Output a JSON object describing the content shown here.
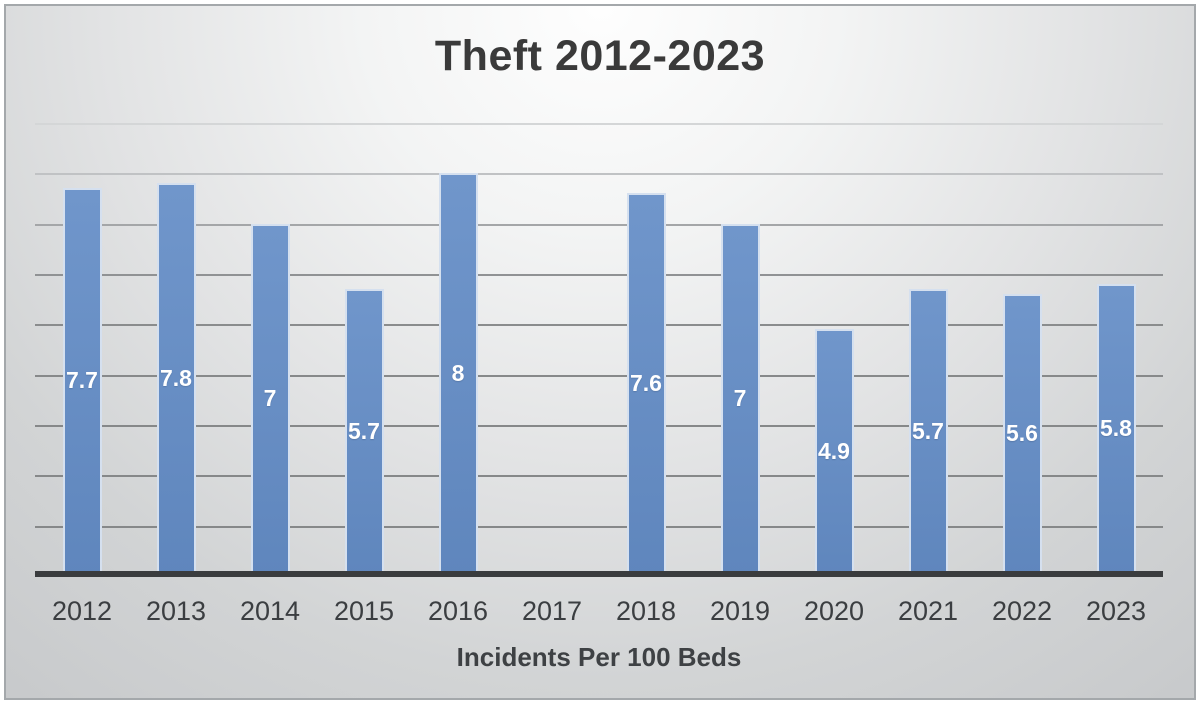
{
  "chart_data": {
    "type": "bar",
    "title": "Theft 2012-2023",
    "xlabel": "Incidents Per 100 Beds",
    "ylabel": "",
    "categories": [
      "2012",
      "2013",
      "2014",
      "2015",
      "2016",
      "2017",
      "2018",
      "2019",
      "2020",
      "2021",
      "2022",
      "2023"
    ],
    "values": [
      7.7,
      7.8,
      7,
      5.7,
      8,
      null,
      7.6,
      7,
      4.9,
      5.7,
      5.6,
      5.8
    ],
    "bar_labels": [
      "7.7",
      "7.8",
      "7",
      "5.7",
      "8",
      "",
      "7.6",
      "7",
      "4.9",
      "5.7",
      "5.6",
      "5.8"
    ],
    "ylim": [
      0,
      9
    ],
    "gridline_step": 1,
    "grid": true,
    "legend": false,
    "colors": {
      "bar_fill_top": "#7096CB",
      "bar_fill_bottom": "#5F86BD",
      "bar_border": "#D5E0EF",
      "bar_label_text": "#FFFFFF",
      "axis_line": "#3A3C3E",
      "title_text": "#3A3A3A",
      "tick_text": "#3B3E41",
      "gridline_bottom": "#868889",
      "gridline_top": "#D4D6D7"
    }
  }
}
